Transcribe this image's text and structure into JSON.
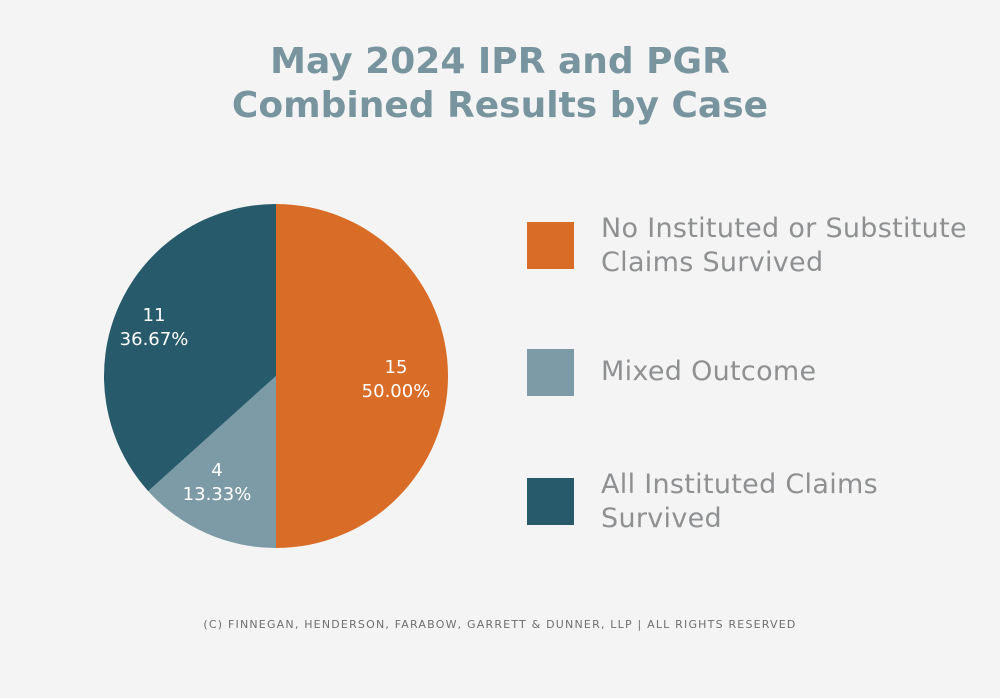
{
  "chart_data": {
    "type": "pie",
    "title": "May 2024 IPR and PGR Combined Results by Case",
    "title_lines": [
      "May 2024 IPR and PGR",
      "Combined Results by Case"
    ],
    "slices": [
      {
        "name": "No Instituted or Substitute Claims Survived",
        "count": "15",
        "percent": "50.00%",
        "value": 15,
        "color": "#d96c27"
      },
      {
        "name": "Mixed Outcome",
        "count": "4",
        "percent": "13.33%",
        "value": 4,
        "color": "#7d9ba6"
      },
      {
        "name": "All Instituted Claims Survived",
        "count": "11",
        "percent": "36.67%",
        "value": 11,
        "color": "#275b6b"
      }
    ]
  },
  "legend": [
    {
      "line1": "No Instituted or Substitute",
      "line2": "Claims Survived"
    },
    {
      "line1": "Mixed Outcome",
      "line2": ""
    },
    {
      "line1": "All Instituted Claims",
      "line2": "Survived"
    }
  ],
  "footer": "(C) Finnegan, Henderson, Farabow, Garrett & Dunner, LLP | All Rights Reserved"
}
